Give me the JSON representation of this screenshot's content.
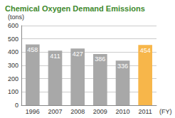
{
  "chart_data": {
    "type": "bar",
    "title": "Chemical Oxygen Demand Emissions",
    "ylabel": "(tons)",
    "xlabel": "(FY)",
    "categories": [
      "1996",
      "2007",
      "2008",
      "2009",
      "2010",
      "2011"
    ],
    "values": [
      458,
      411,
      427,
      386,
      336,
      454
    ],
    "colors": [
      "#a8a8a8",
      "#a8a8a8",
      "#a8a8a8",
      "#a8a8a8",
      "#a8a8a8",
      "#f7b64a"
    ],
    "ylim": [
      0,
      600
    ],
    "yticks": [
      0,
      100,
      200,
      300,
      400,
      500,
      600
    ],
    "grid": true,
    "data_labels": true
  }
}
